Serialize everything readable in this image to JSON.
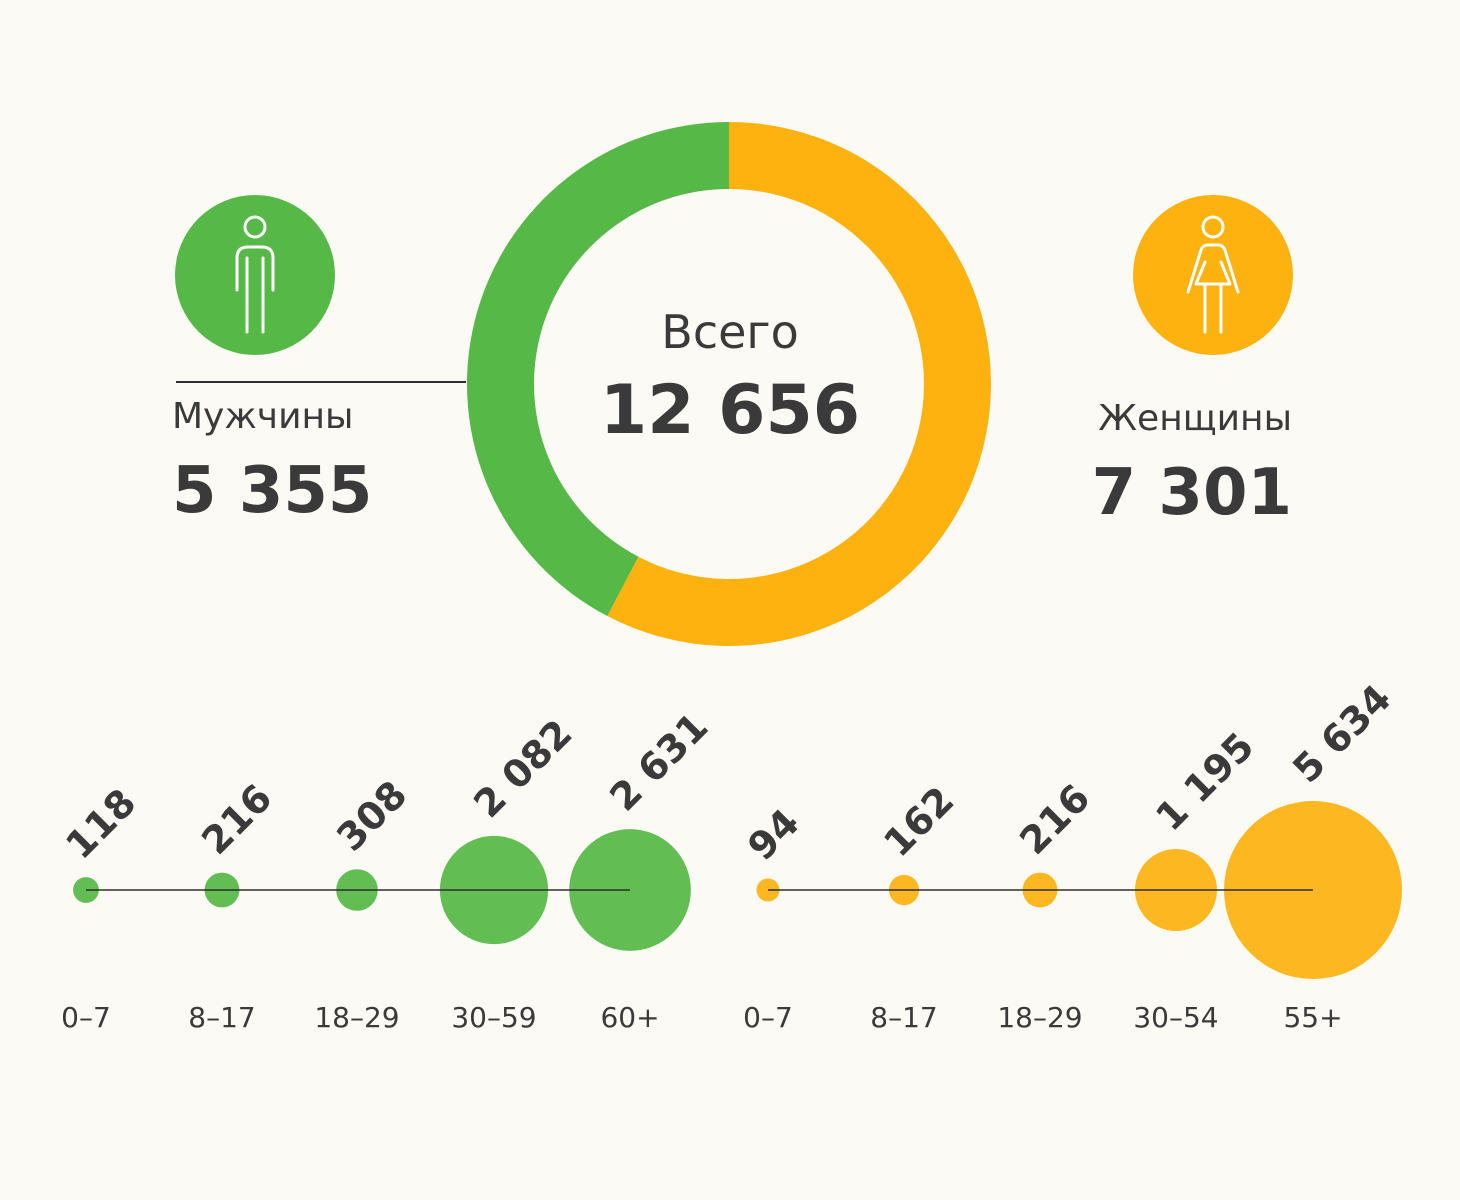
{
  "colors": {
    "men": "#56b846",
    "women": "#fdb20f",
    "text": "#3a3a3a",
    "line": "#2f2f2f",
    "background": "#fbfaf4"
  },
  "icons": {
    "men": "man-figure-icon",
    "women": "woman-figure-icon"
  },
  "chart_data": [
    {
      "type": "pie",
      "style": "donut",
      "center_label": "Всего",
      "total": "12 656",
      "slices": [
        {
          "label": "Мужчины",
          "value": 5355,
          "value_text": "5 355",
          "color": "#56b846"
        },
        {
          "label": "Женщины",
          "value": 7301,
          "value_text": "7 301",
          "color": "#fdb20f"
        }
      ]
    },
    {
      "type": "scatter",
      "style": "bubble",
      "series": [
        {
          "group": "men",
          "color": "#56b846",
          "categories": [
            "0–7",
            "8–17",
            "18–29",
            "30–59",
            "60+"
          ],
          "values": [
            118,
            216,
            308,
            2082,
            2631
          ],
          "value_labels": [
            "118",
            "216",
            "308",
            "2 082",
            "2 631"
          ]
        },
        {
          "group": "women",
          "color": "#fdb20f",
          "categories": [
            "0–7",
            "8–17",
            "18–29",
            "30–54",
            "55+"
          ],
          "values": [
            94,
            162,
            216,
            1195,
            5634
          ],
          "value_labels": [
            "94",
            "162",
            "216",
            "1 195",
            "5 634"
          ]
        }
      ]
    }
  ]
}
